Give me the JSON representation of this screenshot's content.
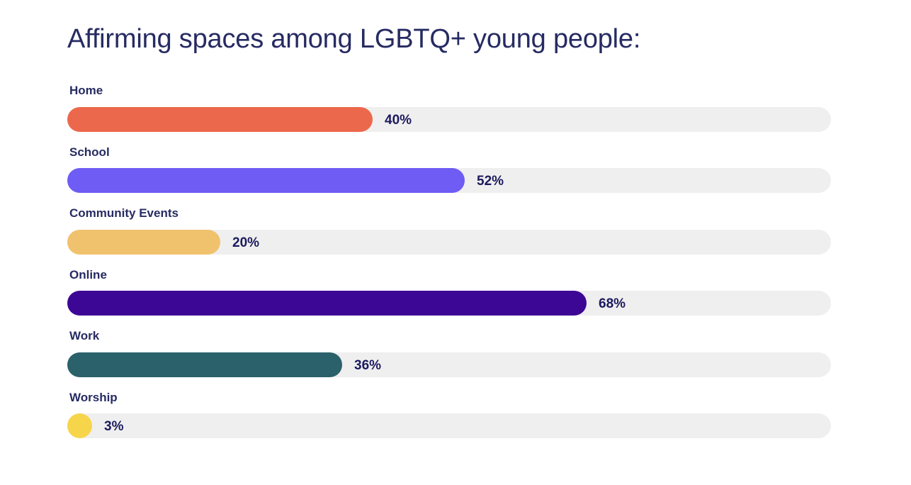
{
  "chart_data": {
    "type": "bar",
    "orientation": "horizontal",
    "title": "Affirming spaces among LGBTQ+ young people:",
    "categories": [
      "Home",
      "School",
      "Community Events",
      "Online",
      "Work",
      "Worship"
    ],
    "values": [
      40,
      52,
      20,
      68,
      36,
      3
    ],
    "value_labels": [
      "40%",
      "52%",
      "20%",
      "68%",
      "36%",
      "3%"
    ],
    "colors": [
      "#ec684c",
      "#6e5cf4",
      "#f0c26e",
      "#3d0795",
      "#2b616a",
      "#f6d54b"
    ],
    "track_color": "#efefef",
    "xlim": [
      0,
      100
    ],
    "grid": false,
    "legend": "none"
  }
}
